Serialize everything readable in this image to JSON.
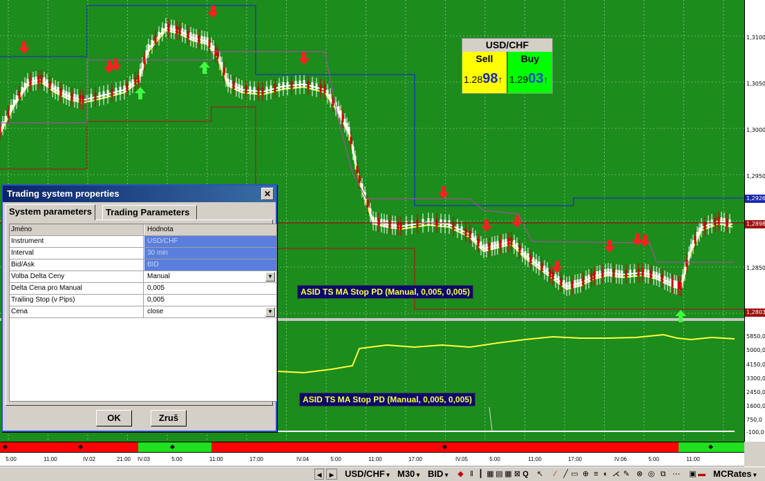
{
  "ticker": {
    "symbol": "USD/CHF",
    "sell_label": "Sell",
    "buy_label": "Buy",
    "sell_small": "1.28",
    "sell_big": "98",
    "buy_small": "1.29",
    "buy_big": "03",
    "arrow": "↑"
  },
  "indicator_labels": {
    "upper": "ASID TS MA Stop PD (Manual, 0,005, 0,005)",
    "lower": "ASID TS MA Stop PD (Manual, 0,005, 0,005)"
  },
  "price_scale": {
    "labels": [
      "1,3100",
      "1,3050",
      "1,3000",
      "1,2950",
      "1,2850"
    ],
    "marker_blue": "1,2926",
    "marker_red": "1,2898",
    "marker_bottom": "1,2803",
    "lower_labels": [
      "5850,0",
      "5000,0",
      "4150,0",
      "3300,0",
      "2450,0",
      "1600,0",
      "750,0",
      "-100,0"
    ]
  },
  "colors": {
    "chart_bg": "#1c8c1c",
    "bull": "#ffffff",
    "bear": "#cc0000",
    "ma_fast": "#ffff40",
    "ma_slow": "#ffffff",
    "stop_upper": "#2030c0",
    "stop_lower": "#a02020"
  },
  "time_axis": [
    "5:00",
    "11:00",
    "IV.02",
    "21:00",
    "IV.03",
    "5:00",
    "11:00",
    "17:00",
    "IV.04",
    "5:00",
    "11:00",
    "17:00",
    "IV.05",
    "5:00",
    "11:00",
    "17:00",
    "IV.06",
    "5:00",
    "11:00"
  ],
  "dialog": {
    "title": "Trading system properties",
    "close": "✕",
    "tabs": [
      "System parameters",
      "Trading Parameters"
    ],
    "header": {
      "name": "Jméno",
      "value": "Hodnota"
    },
    "rows": [
      {
        "name": "Instrument",
        "value": "USD/CHF"
      },
      {
        "name": "Interval",
        "value": "30 min"
      },
      {
        "name": "Bid/Ask",
        "value": "BID"
      },
      {
        "name": "Volba Delta Ceny",
        "value": "Manual"
      },
      {
        "name": "Delta Cena pro Manual",
        "value": "0,005"
      },
      {
        "name": "Trailing Stop (v Pips)",
        "value": "0,005"
      },
      {
        "name": "Cena",
        "value": "close"
      }
    ],
    "ok": "OK",
    "cancel": "Zruš"
  },
  "status_bar": {
    "symbol": "USD/CHF",
    "interval": "M30",
    "side": "BID",
    "provider": "MCRates"
  }
}
